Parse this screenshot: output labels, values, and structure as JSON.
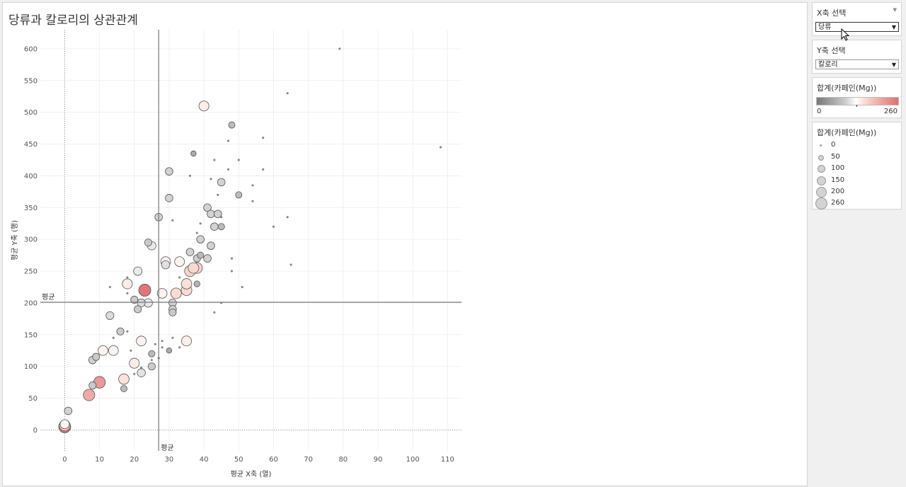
{
  "title": "당류과 칼로리의 상관관계",
  "x_filter": {
    "title": "X축 선택",
    "value": "당류"
  },
  "y_filter": {
    "title": "Y축 선택",
    "value": "칼로리"
  },
  "color_legend": {
    "title": "합계(카페인(Mg))",
    "min": "0",
    "max": "260",
    "low_color": "#777777",
    "mid_color": "#ffffff",
    "high_color": "#e06e6e"
  },
  "size_legend": {
    "title": "합계(카페인(Mg))",
    "items": [
      "0",
      "50",
      "100",
      "150",
      "200",
      "260"
    ]
  },
  "chart_data": {
    "type": "scatter",
    "xlabel": "평균 X축 (열)",
    "ylabel": "평균 Y축 (행)",
    "xlim": [
      -7,
      114
    ],
    "ylim": [
      -33,
      630
    ],
    "xticks": [
      0,
      10,
      20,
      30,
      40,
      50,
      60,
      70,
      80,
      90,
      100,
      110
    ],
    "yticks": [
      0,
      50,
      100,
      150,
      200,
      250,
      300,
      350,
      400,
      450,
      500,
      550,
      600
    ],
    "ref_lines": {
      "x_avg": 27,
      "y_avg": 201,
      "label": "평균"
    },
    "grid": true,
    "points": [
      {
        "x": 0,
        "y": 5,
        "caffeine": 260
      },
      {
        "x": 0,
        "y": 7,
        "caffeine": 200
      },
      {
        "x": 0,
        "y": 9,
        "caffeine": 120
      },
      {
        "x": 1,
        "y": 30,
        "caffeine": 70
      },
      {
        "x": 7,
        "y": 55,
        "caffeine": 230
      },
      {
        "x": 8,
        "y": 70,
        "caffeine": 60
      },
      {
        "x": 8,
        "y": 110,
        "caffeine": 70
      },
      {
        "x": 9,
        "y": 115,
        "caffeine": 60
      },
      {
        "x": 10,
        "y": 75,
        "caffeine": 240
      },
      {
        "x": 11,
        "y": 125,
        "caffeine": 150
      },
      {
        "x": 13,
        "y": 180,
        "caffeine": 80
      },
      {
        "x": 13,
        "y": 225,
        "caffeine": 5
      },
      {
        "x": 14,
        "y": 125,
        "caffeine": 150
      },
      {
        "x": 14,
        "y": 145,
        "caffeine": 5
      },
      {
        "x": 16,
        "y": 155,
        "caffeine": 60
      },
      {
        "x": 17,
        "y": 65,
        "caffeine": 40
      },
      {
        "x": 17,
        "y": 80,
        "caffeine": 180
      },
      {
        "x": 18,
        "y": 230,
        "caffeine": 160
      },
      {
        "x": 18,
        "y": 240,
        "caffeine": 5
      },
      {
        "x": 18,
        "y": 215,
        "caffeine": 5
      },
      {
        "x": 18,
        "y": 155,
        "caffeine": 5
      },
      {
        "x": 19,
        "y": 125,
        "caffeine": 5
      },
      {
        "x": 20,
        "y": 105,
        "caffeine": 160
      },
      {
        "x": 20,
        "y": 205,
        "caffeine": 60
      },
      {
        "x": 20,
        "y": 88,
        "caffeine": 5
      },
      {
        "x": 21,
        "y": 250,
        "caffeine": 100
      },
      {
        "x": 21,
        "y": 190,
        "caffeine": 60
      },
      {
        "x": 22,
        "y": 200,
        "caffeine": 80
      },
      {
        "x": 22,
        "y": 140,
        "caffeine": 150
      },
      {
        "x": 22,
        "y": 90,
        "caffeine": 90
      },
      {
        "x": 22,
        "y": 98,
        "caffeine": 5
      },
      {
        "x": 23,
        "y": 220,
        "caffeine": 260
      },
      {
        "x": 24,
        "y": 295,
        "caffeine": 60
      },
      {
        "x": 24,
        "y": 200,
        "caffeine": 100
      },
      {
        "x": 25,
        "y": 290,
        "caffeine": 100
      },
      {
        "x": 25,
        "y": 100,
        "caffeine": 60
      },
      {
        "x": 25,
        "y": 120,
        "caffeine": 40
      },
      {
        "x": 25,
        "y": 110,
        "caffeine": 5
      },
      {
        "x": 26,
        "y": 135,
        "caffeine": 5
      },
      {
        "x": 27,
        "y": 335,
        "caffeine": 70
      },
      {
        "x": 27,
        "y": 113,
        "caffeine": 5
      },
      {
        "x": 28,
        "y": 215,
        "caffeine": 150
      },
      {
        "x": 28,
        "y": 140,
        "caffeine": 5
      },
      {
        "x": 28,
        "y": 130,
        "caffeine": 5
      },
      {
        "x": 29,
        "y": 265,
        "caffeine": 150
      },
      {
        "x": 29,
        "y": 260,
        "caffeine": 90
      },
      {
        "x": 30,
        "y": 365,
        "caffeine": 70
      },
      {
        "x": 30,
        "y": 407,
        "caffeine": 70
      },
      {
        "x": 30,
        "y": 125,
        "caffeine": 20
      },
      {
        "x": 31,
        "y": 200,
        "caffeine": 70
      },
      {
        "x": 31,
        "y": 190,
        "caffeine": 70
      },
      {
        "x": 31,
        "y": 185,
        "caffeine": 60
      },
      {
        "x": 31,
        "y": 330,
        "caffeine": 5
      },
      {
        "x": 31,
        "y": 145,
        "caffeine": 5
      },
      {
        "x": 32,
        "y": 215,
        "caffeine": 190
      },
      {
        "x": 33,
        "y": 265,
        "caffeine": 150
      },
      {
        "x": 33,
        "y": 130,
        "caffeine": 5
      },
      {
        "x": 33,
        "y": 240,
        "caffeine": 5
      },
      {
        "x": 35,
        "y": 230,
        "caffeine": 180
      },
      {
        "x": 35,
        "y": 220,
        "caffeine": 190
      },
      {
        "x": 35,
        "y": 140,
        "caffeine": 160
      },
      {
        "x": 36,
        "y": 250,
        "caffeine": 200
      },
      {
        "x": 36,
        "y": 280,
        "caffeine": 70
      },
      {
        "x": 36,
        "y": 400,
        "caffeine": 5
      },
      {
        "x": 37,
        "y": 435,
        "caffeine": 20
      },
      {
        "x": 37,
        "y": 255,
        "caffeine": 190
      },
      {
        "x": 38,
        "y": 255,
        "caffeine": 200
      },
      {
        "x": 38,
        "y": 270,
        "caffeine": 60
      },
      {
        "x": 38,
        "y": 230,
        "caffeine": 30
      },
      {
        "x": 38,
        "y": 310,
        "caffeine": 5
      },
      {
        "x": 39,
        "y": 300,
        "caffeine": 70
      },
      {
        "x": 39,
        "y": 275,
        "caffeine": 40
      },
      {
        "x": 39,
        "y": 325,
        "caffeine": 5
      },
      {
        "x": 40,
        "y": 510,
        "caffeine": 160
      },
      {
        "x": 41,
        "y": 350,
        "caffeine": 70
      },
      {
        "x": 41,
        "y": 270,
        "caffeine": 70
      },
      {
        "x": 42,
        "y": 340,
        "caffeine": 70
      },
      {
        "x": 42,
        "y": 290,
        "caffeine": 70
      },
      {
        "x": 42,
        "y": 395,
        "caffeine": 5
      },
      {
        "x": 43,
        "y": 320,
        "caffeine": 70
      },
      {
        "x": 43,
        "y": 425,
        "caffeine": 5
      },
      {
        "x": 43,
        "y": 185,
        "caffeine": 5
      },
      {
        "x": 44,
        "y": 340,
        "caffeine": 70
      },
      {
        "x": 44,
        "y": 370,
        "caffeine": 5
      },
      {
        "x": 45,
        "y": 390,
        "caffeine": 70
      },
      {
        "x": 45,
        "y": 320,
        "caffeine": 40
      },
      {
        "x": 45,
        "y": 335,
        "caffeine": 5
      },
      {
        "x": 45,
        "y": 200,
        "caffeine": 5
      },
      {
        "x": 47,
        "y": 455,
        "caffeine": 5
      },
      {
        "x": 47,
        "y": 410,
        "caffeine": 5
      },
      {
        "x": 48,
        "y": 480,
        "caffeine": 40
      },
      {
        "x": 48,
        "y": 270,
        "caffeine": 5
      },
      {
        "x": 48,
        "y": 250,
        "caffeine": 5
      },
      {
        "x": 50,
        "y": 370,
        "caffeine": 40
      },
      {
        "x": 50,
        "y": 425,
        "caffeine": 5
      },
      {
        "x": 51,
        "y": 225,
        "caffeine": 5
      },
      {
        "x": 54,
        "y": 385,
        "caffeine": 5
      },
      {
        "x": 54,
        "y": 360,
        "caffeine": 5
      },
      {
        "x": 57,
        "y": 460,
        "caffeine": 5
      },
      {
        "x": 57,
        "y": 410,
        "caffeine": 5
      },
      {
        "x": 60,
        "y": 320,
        "caffeine": 5
      },
      {
        "x": 64,
        "y": 530,
        "caffeine": 5
      },
      {
        "x": 64,
        "y": 335,
        "caffeine": 5
      },
      {
        "x": 65,
        "y": 260,
        "caffeine": 5
      },
      {
        "x": 79,
        "y": 600,
        "caffeine": 5
      },
      {
        "x": 108,
        "y": 445,
        "caffeine": 5
      }
    ]
  }
}
